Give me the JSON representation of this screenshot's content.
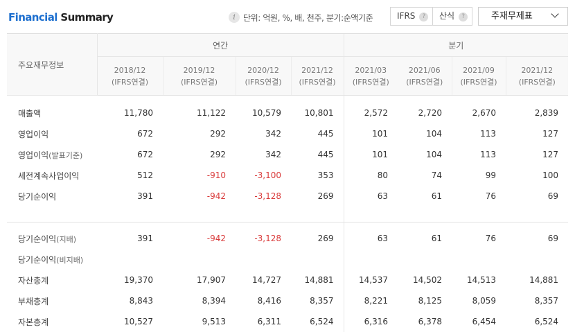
{
  "header": {
    "title_a": "Financial",
    "title_b": "Summary",
    "info_icon": "i",
    "unit_text": "단위: 억원, %, 배, 천주, 분기:순액기준",
    "toggle": [
      {
        "label": "IFRS",
        "help": "?"
      },
      {
        "label": "산식",
        "help": "?"
      }
    ],
    "select": "주재무제표"
  },
  "table": {
    "item_header": "주요재무정보",
    "group_annual": "연간",
    "group_quarter": "분기",
    "periods": [
      {
        "date": "2018/12",
        "basis": "(IFRS연결)"
      },
      {
        "date": "2019/12",
        "basis": "(IFRS연결)"
      },
      {
        "date": "2020/12",
        "basis": "(IFRS연결)"
      },
      {
        "date": "2021/12",
        "basis": "(IFRS연결)"
      },
      {
        "date": "2021/03",
        "basis": "(IFRS연결)"
      },
      {
        "date": "2021/06",
        "basis": "(IFRS연결)"
      },
      {
        "date": "2021/09",
        "basis": "(IFRS연결)"
      },
      {
        "date": "2021/12",
        "basis": "(IFRS연결)"
      }
    ],
    "rows": [
      {
        "name": "매출액",
        "sub": "",
        "values": [
          "11,780",
          "11,122",
          "10,579",
          "10,801",
          "2,572",
          "2,720",
          "2,670",
          "2,839"
        ]
      },
      {
        "name": "영업이익",
        "sub": "",
        "values": [
          "672",
          "292",
          "342",
          "445",
          "101",
          "104",
          "113",
          "127"
        ]
      },
      {
        "name": "영업이익",
        "sub": "(발표기준)",
        "values": [
          "672",
          "292",
          "342",
          "445",
          "101",
          "104",
          "113",
          "127"
        ]
      },
      {
        "name": "세전계속사업이익",
        "sub": "",
        "values": [
          "512",
          "-910",
          "-3,100",
          "353",
          "80",
          "74",
          "99",
          "100"
        ]
      },
      {
        "name": "당기순이익",
        "sub": "",
        "values": [
          "391",
          "-942",
          "-3,128",
          "269",
          "63",
          "61",
          "76",
          "69"
        ]
      }
    ],
    "rows2": [
      {
        "name": "당기순이익",
        "sub": "(지배)",
        "values": [
          "391",
          "-942",
          "-3,128",
          "269",
          "63",
          "61",
          "76",
          "69"
        ]
      },
      {
        "name": "당기순이익",
        "sub": "(비지배)",
        "values": [
          "",
          "",
          "",
          "",
          "",
          "",
          "",
          ""
        ]
      },
      {
        "name": "자산총계",
        "sub": "",
        "values": [
          "19,370",
          "17,907",
          "14,727",
          "14,881",
          "14,537",
          "14,502",
          "14,513",
          "14,881"
        ]
      },
      {
        "name": "부채총계",
        "sub": "",
        "values": [
          "8,843",
          "8,394",
          "8,416",
          "8,357",
          "8,221",
          "8,125",
          "8,059",
          "8,357"
        ]
      },
      {
        "name": "자본총계",
        "sub": "",
        "values": [
          "10,527",
          "9,513",
          "6,311",
          "6,524",
          "6,316",
          "6,378",
          "6,454",
          "6,524"
        ]
      }
    ]
  }
}
